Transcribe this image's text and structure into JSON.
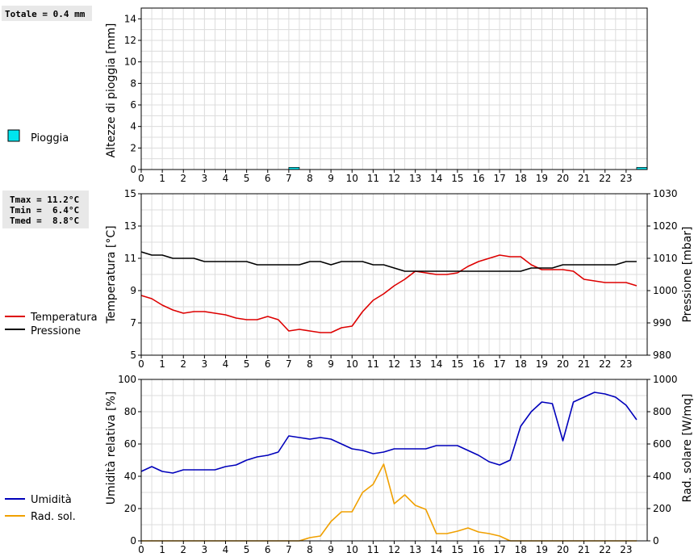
{
  "chart_data": [
    {
      "type": "bar",
      "ylabel": "Altezze di pioggia [mm]",
      "ylim": [
        0,
        15
      ],
      "yticks": [
        0,
        2,
        4,
        6,
        8,
        10,
        12,
        14
      ],
      "xlim": [
        0,
        24
      ],
      "xticks": [
        0,
        1,
        2,
        3,
        4,
        5,
        6,
        7,
        8,
        9,
        10,
        11,
        12,
        13,
        14,
        15,
        16,
        17,
        18,
        19,
        20,
        21,
        22,
        23
      ],
      "grid": true,
      "summary": "Totale = 0.4 mm",
      "series": [
        {
          "name": "Pioggia",
          "color": "#00e5ee",
          "bars": [
            {
              "x": 7.0,
              "width": 0.5,
              "value": 0.2
            },
            {
              "x": 23.5,
              "width": 0.5,
              "value": 0.2
            }
          ]
        }
      ]
    },
    {
      "type": "line",
      "ylabel": "Temperatura [°C]",
      "ylim": [
        5,
        15
      ],
      "yticks": [
        5,
        7,
        9,
        11,
        13,
        15
      ],
      "y2label": "Pressione [mbar]",
      "y2lim": [
        980,
        1030
      ],
      "y2ticks": [
        980,
        990,
        1000,
        1010,
        1020,
        1030
      ],
      "xlim": [
        0,
        24
      ],
      "xticks": [
        0,
        1,
        2,
        3,
        4,
        5,
        6,
        7,
        8,
        9,
        10,
        11,
        12,
        13,
        14,
        15,
        16,
        17,
        18,
        19,
        20,
        21,
        22,
        23
      ],
      "grid": true,
      "stats": [
        "Tmax = 11.2°C",
        "Tmin =  6.4°C",
        "Tmed =  8.8°C"
      ],
      "series": [
        {
          "name": "Temperatura",
          "color": "#dd0000",
          "axis": "left",
          "x": [
            0,
            0.5,
            1,
            1.5,
            2,
            2.5,
            3,
            3.5,
            4,
            4.5,
            5,
            5.5,
            6,
            6.5,
            7,
            7.5,
            8,
            8.5,
            9,
            9.5,
            10,
            10.5,
            11,
            11.5,
            12,
            12.5,
            13,
            13.5,
            14,
            14.5,
            15,
            15.5,
            16,
            16.5,
            17,
            17.5,
            18,
            18.5,
            19,
            19.5,
            20,
            20.5,
            21,
            21.5,
            22,
            22.5,
            23,
            23.5
          ],
          "y": [
            8.7,
            8.5,
            8.1,
            7.8,
            7.6,
            7.7,
            7.7,
            7.6,
            7.5,
            7.3,
            7.2,
            7.2,
            7.4,
            7.2,
            6.5,
            6.6,
            6.5,
            6.4,
            6.4,
            6.7,
            6.8,
            7.7,
            8.4,
            8.8,
            9.3,
            9.7,
            10.2,
            10.1,
            10.0,
            10.0,
            10.1,
            10.5,
            10.8,
            11.0,
            11.2,
            11.1,
            11.1,
            10.6,
            10.3,
            10.3,
            10.3,
            10.2,
            9.7,
            9.6,
            9.5,
            9.5,
            9.5,
            9.3
          ]
        },
        {
          "name": "Pressione",
          "color": "#000000",
          "axis": "right",
          "x": [
            0,
            0.5,
            1,
            1.5,
            2,
            2.5,
            3,
            3.5,
            4,
            4.5,
            5,
            5.5,
            6,
            6.5,
            7,
            7.5,
            8,
            8.5,
            9,
            9.5,
            10,
            10.5,
            11,
            11.5,
            12,
            12.5,
            13,
            13.5,
            14,
            14.5,
            15,
            15.5,
            16,
            16.5,
            17,
            17.5,
            18,
            18.5,
            19,
            19.5,
            20,
            20.5,
            21,
            21.5,
            22,
            22.5,
            23,
            23.5
          ],
          "y": [
            1012,
            1011,
            1011,
            1010,
            1010,
            1010,
            1009,
            1009,
            1009,
            1009,
            1009,
            1008,
            1008,
            1008,
            1008,
            1008,
            1009,
            1009,
            1008,
            1009,
            1009,
            1009,
            1008,
            1008,
            1007,
            1006,
            1006,
            1006,
            1006,
            1006,
            1006,
            1006,
            1006,
            1006,
            1006,
            1006,
            1006,
            1007,
            1007,
            1007,
            1008,
            1008,
            1008,
            1008,
            1008,
            1008,
            1009,
            1009
          ]
        }
      ]
    },
    {
      "type": "line",
      "ylabel": "Umidità relativa [%]",
      "ylim": [
        0,
        100
      ],
      "yticks": [
        0,
        20,
        40,
        60,
        80,
        100
      ],
      "y2label": "Rad. solare [W/mq]",
      "y2lim": [
        0,
        1000
      ],
      "y2ticks": [
        0,
        200,
        400,
        600,
        800,
        1000
      ],
      "xlim": [
        0,
        24
      ],
      "xticks": [
        0,
        1,
        2,
        3,
        4,
        5,
        6,
        7,
        8,
        9,
        10,
        11,
        12,
        13,
        14,
        15,
        16,
        17,
        18,
        19,
        20,
        21,
        22,
        23
      ],
      "grid": true,
      "series": [
        {
          "name": "Umidità",
          "color": "#0000bb",
          "axis": "left",
          "x": [
            0,
            0.5,
            1,
            1.5,
            2,
            2.5,
            3,
            3.5,
            4,
            4.5,
            5,
            5.5,
            6,
            6.5,
            7,
            7.5,
            8,
            8.5,
            9,
            9.5,
            10,
            10.5,
            11,
            11.5,
            12,
            12.5,
            13,
            13.5,
            14,
            14.5,
            15,
            15.5,
            16,
            16.5,
            17,
            17.5,
            18,
            18.5,
            19,
            19.5,
            20,
            20.5,
            21,
            21.5,
            22,
            22.5,
            23,
            23.5
          ],
          "y": [
            43,
            46,
            43,
            42,
            44,
            44,
            44,
            44,
            46,
            47,
            50,
            52,
            53,
            55,
            65,
            64,
            63,
            64,
            63,
            60,
            57,
            56,
            54,
            55,
            57,
            57,
            57,
            57,
            59,
            59,
            59,
            56,
            53,
            49,
            47,
            50,
            71,
            80,
            86,
            85,
            62,
            86,
            89,
            92,
            91,
            89,
            84,
            75
          ]
        },
        {
          "name": "Rad. sol.",
          "color": "#f0a000",
          "axis": "right",
          "x": [
            0,
            0.5,
            1,
            1.5,
            2,
            2.5,
            3,
            3.5,
            4,
            4.5,
            5,
            5.5,
            6,
            6.5,
            7,
            7.5,
            8,
            8.5,
            9,
            9.5,
            10,
            10.5,
            11,
            11.5,
            12,
            12.5,
            13,
            13.5,
            14,
            14.5,
            15,
            15.5,
            16,
            16.5,
            17,
            17.5,
            18,
            18.5,
            19,
            19.5,
            20,
            20.5,
            21,
            21.5,
            22,
            22.5,
            23,
            23.5
          ],
          "y": [
            0,
            0,
            0,
            0,
            0,
            0,
            0,
            0,
            0,
            0,
            0,
            0,
            0,
            0,
            0,
            0,
            20,
            30,
            120,
            180,
            180,
            300,
            350,
            475,
            230,
            285,
            220,
            195,
            45,
            45,
            60,
            80,
            55,
            45,
            30,
            0,
            0,
            0,
            0,
            0,
            0,
            0,
            0,
            0,
            0,
            0,
            0,
            0
          ]
        }
      ]
    }
  ]
}
